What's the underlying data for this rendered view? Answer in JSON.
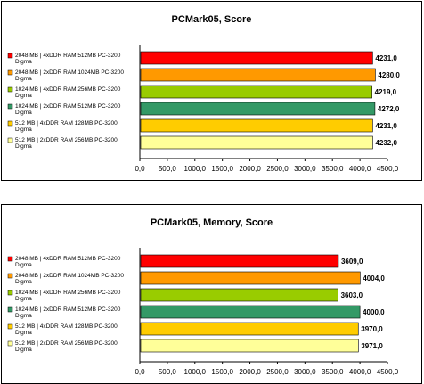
{
  "chart_data": [
    {
      "type": "bar",
      "orientation": "horizontal",
      "title": "PCMark05, Score",
      "xlabel": "",
      "ylabel": "",
      "xlim": [
        0,
        4500
      ],
      "xticks": [
        "0,0",
        "500,0",
        "1000,0",
        "1500,0",
        "2000,0",
        "2500,0",
        "3000,0",
        "3500,0",
        "4000,0",
        "4500,0"
      ],
      "grid": false,
      "legend_position": "left",
      "categories": [
        "2048 MB | 4xDDR RAM 512MB PC-3200 Digma",
        "2048 MB | 2xDDR RAM 1024MB PC-3200 Digma",
        "1024 MB | 4xDDR RAM 256MB PC-3200 Digma",
        "1024 MB | 2xDDR RAM 512MB PC-3200 Digma",
        "512 MB | 4xDDR RAM 128MB PC-3200 Digma",
        "512 MB | 2xDDR RAM 256MB PC-3200 Digma"
      ],
      "values": [
        4231,
        4280,
        4219,
        4272,
        4231,
        4232
      ],
      "value_labels": [
        "4231,0",
        "4280,0",
        "4219,0",
        "4272,0",
        "4231,0",
        "4232,0"
      ],
      "colors": [
        "#ff0000",
        "#ff9900",
        "#99cc00",
        "#339966",
        "#ffcc00",
        "#ffff99"
      ]
    },
    {
      "type": "bar",
      "orientation": "horizontal",
      "title": "PCMark05, Memory, Score",
      "xlabel": "",
      "ylabel": "",
      "xlim": [
        0,
        4500
      ],
      "xticks": [
        "0,0",
        "500,0",
        "1000,0",
        "1500,0",
        "2000,0",
        "2500,0",
        "3000,0",
        "3500,0",
        "4000,0",
        "4500,0"
      ],
      "grid": false,
      "legend_position": "left",
      "categories": [
        "2048 MB | 4xDDR RAM 512MB PC-3200 Digma",
        "2048 MB | 2xDDR RAM 1024MB PC-3200 Digma",
        "1024 MB | 4xDDR RAM 256MB PC-3200 Digma",
        "1024 MB | 2xDDR RAM 512MB PC-3200 Digma",
        "512 MB | 4xDDR RAM 128MB PC-3200 Digma",
        "512 MB | 2xDDR RAM 256MB PC-3200 Digma"
      ],
      "values": [
        3609,
        4004,
        3603,
        4000,
        3970,
        3971
      ],
      "value_labels": [
        "3609,0",
        "4004,0",
        "3603,0",
        "4000,0",
        "3970,0",
        "3971,0"
      ],
      "colors": [
        "#ff0000",
        "#ff9900",
        "#99cc00",
        "#339966",
        "#ffcc00",
        "#ffff99"
      ]
    }
  ]
}
